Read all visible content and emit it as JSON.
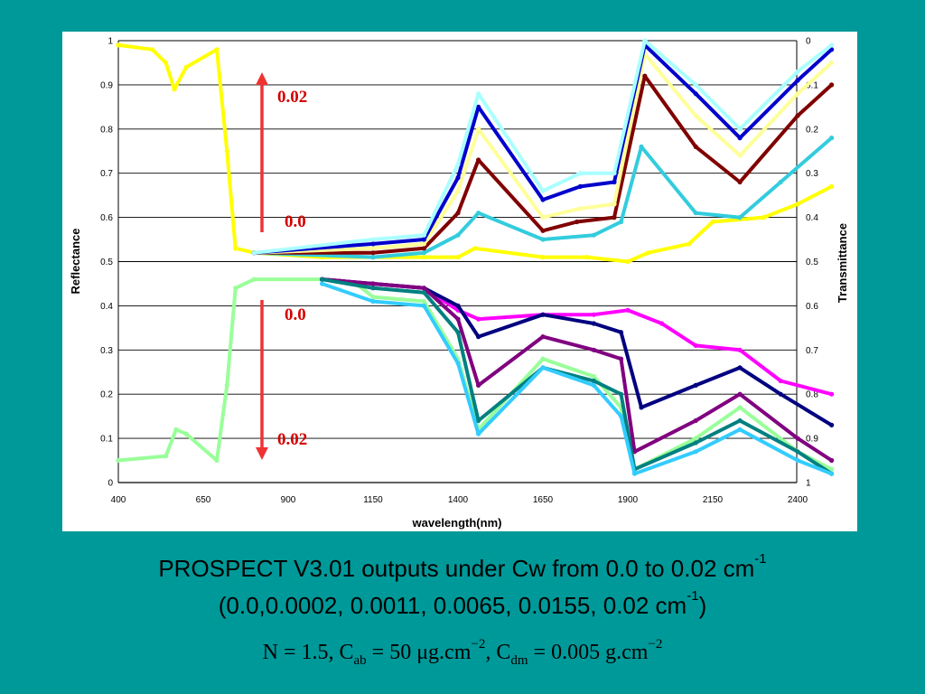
{
  "chart_data": {
    "type": "line",
    "xlabel": "wavelength(nm)",
    "ylabel_left": "Reflectance",
    "ylabel_right": "Transmittance",
    "x_ticks": [
      "400",
      "650",
      "900",
      "1150",
      "1400",
      "1650",
      "1900",
      "2150",
      "2400"
    ],
    "y_ticks_left": [
      "0",
      "0.1",
      "0.2",
      "0.3",
      "0.4",
      "0.5",
      "0.6",
      "0.7",
      "0.8",
      "0.9",
      "1"
    ],
    "y_ticks_right": [
      "1",
      "0.9",
      "0.8",
      "0.7",
      "0.6",
      "0.5",
      "0.4",
      "0.3",
      "0.2",
      "0.1",
      "0"
    ],
    "xlim": [
      400,
      2500
    ],
    "ylim": [
      0,
      1
    ],
    "y2_inverted": true,
    "grid": "horizontal",
    "annotations": {
      "refl_top": "0.02",
      "refl_bottom": "0.0",
      "trans_top": "0.0",
      "trans_bottom": "0.02"
    },
    "reflectance_series": [
      {
        "color": "#ffff00",
        "points": [
          [
            400,
            0.99
          ],
          [
            500,
            0.98
          ],
          [
            540,
            0.95
          ],
          [
            565,
            0.89
          ],
          [
            600,
            0.94
          ],
          [
            690,
            0.98
          ],
          [
            720,
            0.75
          ],
          [
            745,
            0.53
          ],
          [
            800,
            0.52
          ],
          [
            1000,
            0.51
          ],
          [
            1150,
            0.51
          ],
          [
            1300,
            0.51
          ],
          [
            1400,
            0.51
          ],
          [
            1450,
            0.53
          ],
          [
            1650,
            0.51
          ],
          [
            1780,
            0.51
          ],
          [
            1900,
            0.5
          ],
          [
            1960,
            0.52
          ],
          [
            2080,
            0.54
          ],
          [
            2150,
            0.59
          ],
          [
            2300,
            0.6
          ],
          [
            2400,
            0.63
          ],
          [
            2500,
            0.67
          ]
        ]
      },
      {
        "color": "#33ccdd",
        "points": [
          [
            800,
            0.52
          ],
          [
            1150,
            0.51
          ],
          [
            1300,
            0.52
          ],
          [
            1400,
            0.56
          ],
          [
            1460,
            0.61
          ],
          [
            1650,
            0.55
          ],
          [
            1800,
            0.56
          ],
          [
            1880,
            0.59
          ],
          [
            1940,
            0.76
          ],
          [
            2100,
            0.61
          ],
          [
            2230,
            0.6
          ],
          [
            2350,
            0.68
          ],
          [
            2500,
            0.78
          ]
        ]
      },
      {
        "color": "#800000",
        "points": [
          [
            800,
            0.52
          ],
          [
            1150,
            0.52
          ],
          [
            1300,
            0.53
          ],
          [
            1400,
            0.61
          ],
          [
            1460,
            0.73
          ],
          [
            1650,
            0.57
          ],
          [
            1750,
            0.59
          ],
          [
            1860,
            0.6
          ],
          [
            1950,
            0.92
          ],
          [
            2100,
            0.76
          ],
          [
            2230,
            0.68
          ],
          [
            2400,
            0.83
          ],
          [
            2500,
            0.9
          ]
        ]
      },
      {
        "color": "#ffff99",
        "points": [
          [
            800,
            0.52
          ],
          [
            1150,
            0.53
          ],
          [
            1300,
            0.54
          ],
          [
            1400,
            0.66
          ],
          [
            1460,
            0.8
          ],
          [
            1650,
            0.6
          ],
          [
            1760,
            0.62
          ],
          [
            1860,
            0.63
          ],
          [
            1950,
            0.97
          ],
          [
            2100,
            0.83
          ],
          [
            2230,
            0.74
          ],
          [
            2400,
            0.88
          ],
          [
            2500,
            0.95
          ]
        ]
      },
      {
        "color": "#0000cc",
        "points": [
          [
            800,
            0.52
          ],
          [
            1150,
            0.54
          ],
          [
            1300,
            0.55
          ],
          [
            1400,
            0.69
          ],
          [
            1460,
            0.85
          ],
          [
            1650,
            0.64
          ],
          [
            1760,
            0.67
          ],
          [
            1860,
            0.68
          ],
          [
            1950,
            0.99
          ],
          [
            2100,
            0.88
          ],
          [
            2230,
            0.78
          ],
          [
            2400,
            0.91
          ],
          [
            2500,
            0.98
          ]
        ]
      },
      {
        "color": "#aaffff",
        "points": [
          [
            800,
            0.52
          ],
          [
            1150,
            0.55
          ],
          [
            1300,
            0.56
          ],
          [
            1400,
            0.72
          ],
          [
            1460,
            0.88
          ],
          [
            1650,
            0.66
          ],
          [
            1760,
            0.7
          ],
          [
            1860,
            0.7
          ],
          [
            1950,
            1.0
          ],
          [
            2100,
            0.9
          ],
          [
            2230,
            0.8
          ],
          [
            2400,
            0.93
          ],
          [
            2500,
            0.99
          ]
        ]
      }
    ],
    "transmittance_series": [
      {
        "color": "#99ff99",
        "points": [
          [
            400,
            0.95
          ],
          [
            540,
            0.94
          ],
          [
            570,
            0.88
          ],
          [
            600,
            0.89
          ],
          [
            690,
            0.95
          ],
          [
            720,
            0.78
          ],
          [
            745,
            0.56
          ],
          [
            800,
            0.54
          ],
          [
            1000,
            0.54
          ],
          [
            1100,
            0.55
          ],
          [
            1150,
            0.58
          ],
          [
            1300,
            0.59
          ],
          [
            1400,
            0.72
          ],
          [
            1460,
            0.88
          ],
          [
            1650,
            0.72
          ],
          [
            1800,
            0.76
          ],
          [
            1880,
            0.83
          ],
          [
            1920,
            0.97
          ],
          [
            2100,
            0.9
          ],
          [
            2230,
            0.83
          ],
          [
            2400,
            0.93
          ],
          [
            2500,
            0.97
          ]
        ]
      },
      {
        "color": "#ff00ff",
        "points": [
          [
            1000,
            0.54
          ],
          [
            1150,
            0.55
          ],
          [
            1300,
            0.56
          ],
          [
            1400,
            0.61
          ],
          [
            1460,
            0.63
          ],
          [
            1650,
            0.62
          ],
          [
            1800,
            0.62
          ],
          [
            1900,
            0.61
          ],
          [
            2000,
            0.64
          ],
          [
            2100,
            0.69
          ],
          [
            2230,
            0.7
          ],
          [
            2350,
            0.77
          ],
          [
            2500,
            0.8
          ]
        ]
      },
      {
        "color": "#000080",
        "points": [
          [
            1000,
            0.54
          ],
          [
            1150,
            0.55
          ],
          [
            1300,
            0.56
          ],
          [
            1400,
            0.6
          ],
          [
            1460,
            0.67
          ],
          [
            1650,
            0.62
          ],
          [
            1800,
            0.64
          ],
          [
            1880,
            0.66
          ],
          [
            1940,
            0.83
          ],
          [
            2100,
            0.78
          ],
          [
            2230,
            0.74
          ],
          [
            2350,
            0.8
          ],
          [
            2500,
            0.87
          ]
        ]
      },
      {
        "color": "#800080",
        "points": [
          [
            1000,
            0.54
          ],
          [
            1150,
            0.55
          ],
          [
            1300,
            0.56
          ],
          [
            1400,
            0.63
          ],
          [
            1460,
            0.78
          ],
          [
            1650,
            0.67
          ],
          [
            1800,
            0.7
          ],
          [
            1880,
            0.72
          ],
          [
            1920,
            0.93
          ],
          [
            2100,
            0.86
          ],
          [
            2230,
            0.8
          ],
          [
            2400,
            0.9
          ],
          [
            2500,
            0.95
          ]
        ]
      },
      {
        "color": "#008080",
        "points": [
          [
            1000,
            0.54
          ],
          [
            1150,
            0.56
          ],
          [
            1300,
            0.57
          ],
          [
            1400,
            0.66
          ],
          [
            1460,
            0.86
          ],
          [
            1650,
            0.74
          ],
          [
            1800,
            0.77
          ],
          [
            1880,
            0.8
          ],
          [
            1920,
            0.97
          ],
          [
            2100,
            0.91
          ],
          [
            2230,
            0.86
          ],
          [
            2400,
            0.93
          ],
          [
            2500,
            0.98
          ]
        ]
      },
      {
        "color": "#33ccff",
        "points": [
          [
            1000,
            0.55
          ],
          [
            1150,
            0.59
          ],
          [
            1300,
            0.6
          ],
          [
            1400,
            0.73
          ],
          [
            1460,
            0.89
          ],
          [
            1650,
            0.74
          ],
          [
            1800,
            0.78
          ],
          [
            1880,
            0.85
          ],
          [
            1920,
            0.98
          ],
          [
            2100,
            0.93
          ],
          [
            2230,
            0.88
          ],
          [
            2400,
            0.95
          ],
          [
            2500,
            0.98
          ]
        ]
      }
    ]
  },
  "caption": {
    "line1_text": "PROSPECT V3.01 outputs under Cw from 0.0 to 0.02 cm",
    "line1_sup": "-1",
    "line2_text": "(0.0,0.0002, 0.0011, 0.0065, 0.0155, 0.02 cm",
    "line2_sup": "-1",
    "line2_end": ")",
    "line3_a": "N = 1.5, C",
    "line3_sub1": "ab",
    "line3_b": " = 50 μg.cm",
    "line3_sup1": "−2",
    "line3_c": ", C",
    "line3_sub2": "dm",
    "line3_d": " = 0.005 g.cm",
    "line3_sup2": "−2"
  }
}
